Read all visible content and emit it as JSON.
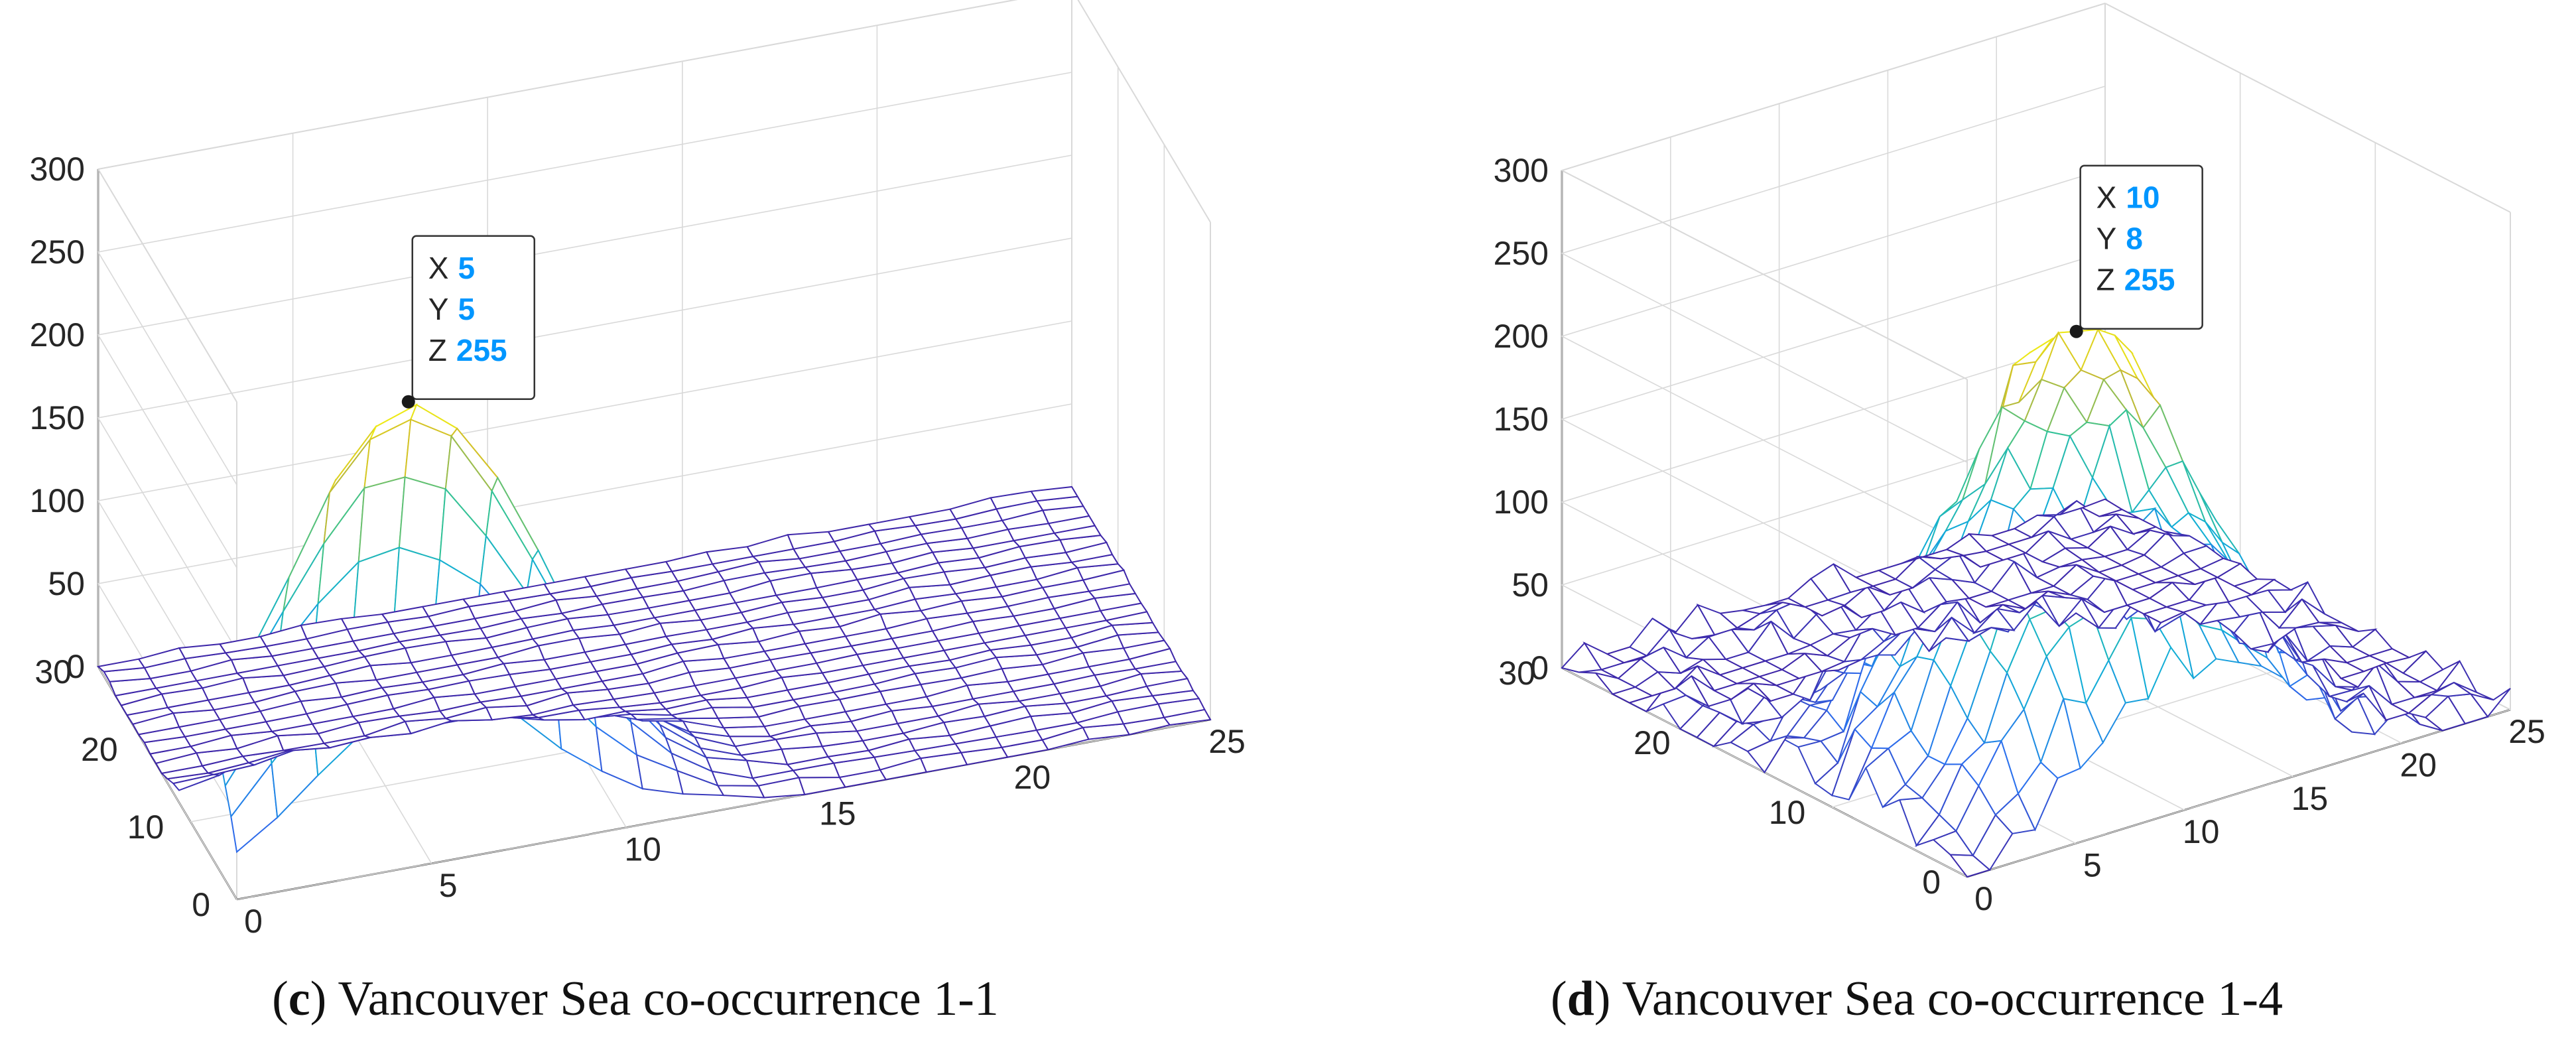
{
  "chart_data": [
    {
      "type": "surface",
      "panel_letter": "c",
      "caption": "Vancouver Sea co-occurrence 1-1",
      "xlim": [
        0,
        25
      ],
      "ylim": [
        0,
        30
      ],
      "zlim": [
        0,
        300
      ],
      "x_ticks": [
        "0",
        "5",
        "10",
        "15",
        "20",
        "25"
      ],
      "y_ticks": [
        "0",
        "10",
        "20",
        "30"
      ],
      "z_ticks": [
        "0",
        "50",
        "100",
        "150",
        "200",
        "250",
        "300"
      ],
      "grid": true,
      "grid_size": 24,
      "colormap": "parula",
      "peak": {
        "x": 5,
        "y": 5,
        "z": 255
      },
      "spread": [
        3.2,
        3.6
      ],
      "noise": 3,
      "datatip": {
        "x_label": "X",
        "x_value": "5",
        "y_label": "Y",
        "y_value": "5",
        "z_label": "Z",
        "z_value": "255"
      }
    },
    {
      "type": "surface",
      "panel_letter": "d",
      "caption": "Vancouver Sea co-occurrence 1-4",
      "xlim": [
        0,
        25
      ],
      "ylim": [
        0,
        30
      ],
      "zlim": [
        0,
        300
      ],
      "x_ticks": [
        "0",
        "5",
        "10",
        "15",
        "20",
        "25"
      ],
      "y_ticks": [
        "0",
        "10",
        "20",
        "30"
      ],
      "z_ticks": [
        "0",
        "50",
        "100",
        "150",
        "200",
        "250",
        "300"
      ],
      "grid": true,
      "grid_size": 24,
      "colormap": "parula",
      "peak": {
        "x": 10,
        "y": 8,
        "z": 255
      },
      "spread": [
        4.5,
        5.5
      ],
      "noise": 14,
      "datatip": {
        "x_label": "X",
        "x_value": "10",
        "y_label": "Y",
        "y_value": "8",
        "z_label": "Z",
        "z_value": "255"
      }
    }
  ]
}
